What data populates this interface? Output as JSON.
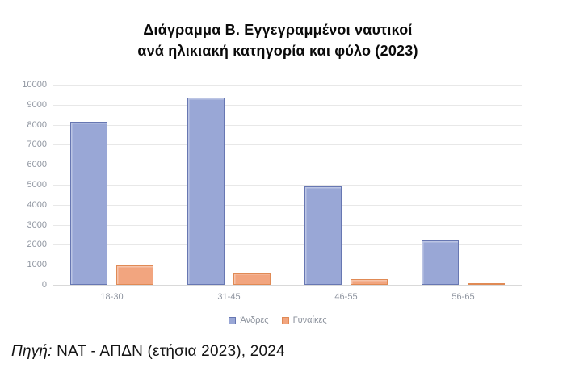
{
  "chart": {
    "title_line1": "Διάγραμμα Β. Εγγεγραμμένοι ναυτικοί",
    "title_line2": "ανά ηλικιακή κατηγορία και φύλο (2023)"
  },
  "chart_data": {
    "type": "bar",
    "title": "Διάγραμμα Β. Εγγεγραμμένοι ναυτικοί ανά ηλικιακή κατηγορία και φύλο (2023)",
    "categories": [
      "18-30",
      "31-45",
      "46-55",
      "56-65"
    ],
    "series": [
      {
        "key": "men",
        "name": "Άνδρες",
        "values": [
          8150,
          9350,
          4900,
          2200
        ],
        "fill": "#99A7D6",
        "border": "#6777B2"
      },
      {
        "key": "women",
        "name": "Γυναίκες",
        "values": [
          970,
          600,
          270,
          90
        ],
        "fill": "#F2A57F",
        "border": "#E08A55"
      }
    ],
    "xlabel": "",
    "ylabel": "",
    "ylim": [
      0,
      10000
    ],
    "ytick_step": 1000,
    "yticks": [
      "0",
      "1000",
      "2000",
      "3000",
      "4000",
      "5000",
      "6000",
      "7000",
      "8000",
      "9000",
      "10000"
    ],
    "grid": "horizontal",
    "legend_position": "bottom",
    "gridline_color": "#e8e8e8",
    "axis_label_color": "#8f95a0"
  },
  "source": {
    "prefix": "Πηγή:",
    "text": " ΝΑΤ - ΑΠΔΝ (ετήσια 2023), 2024"
  }
}
